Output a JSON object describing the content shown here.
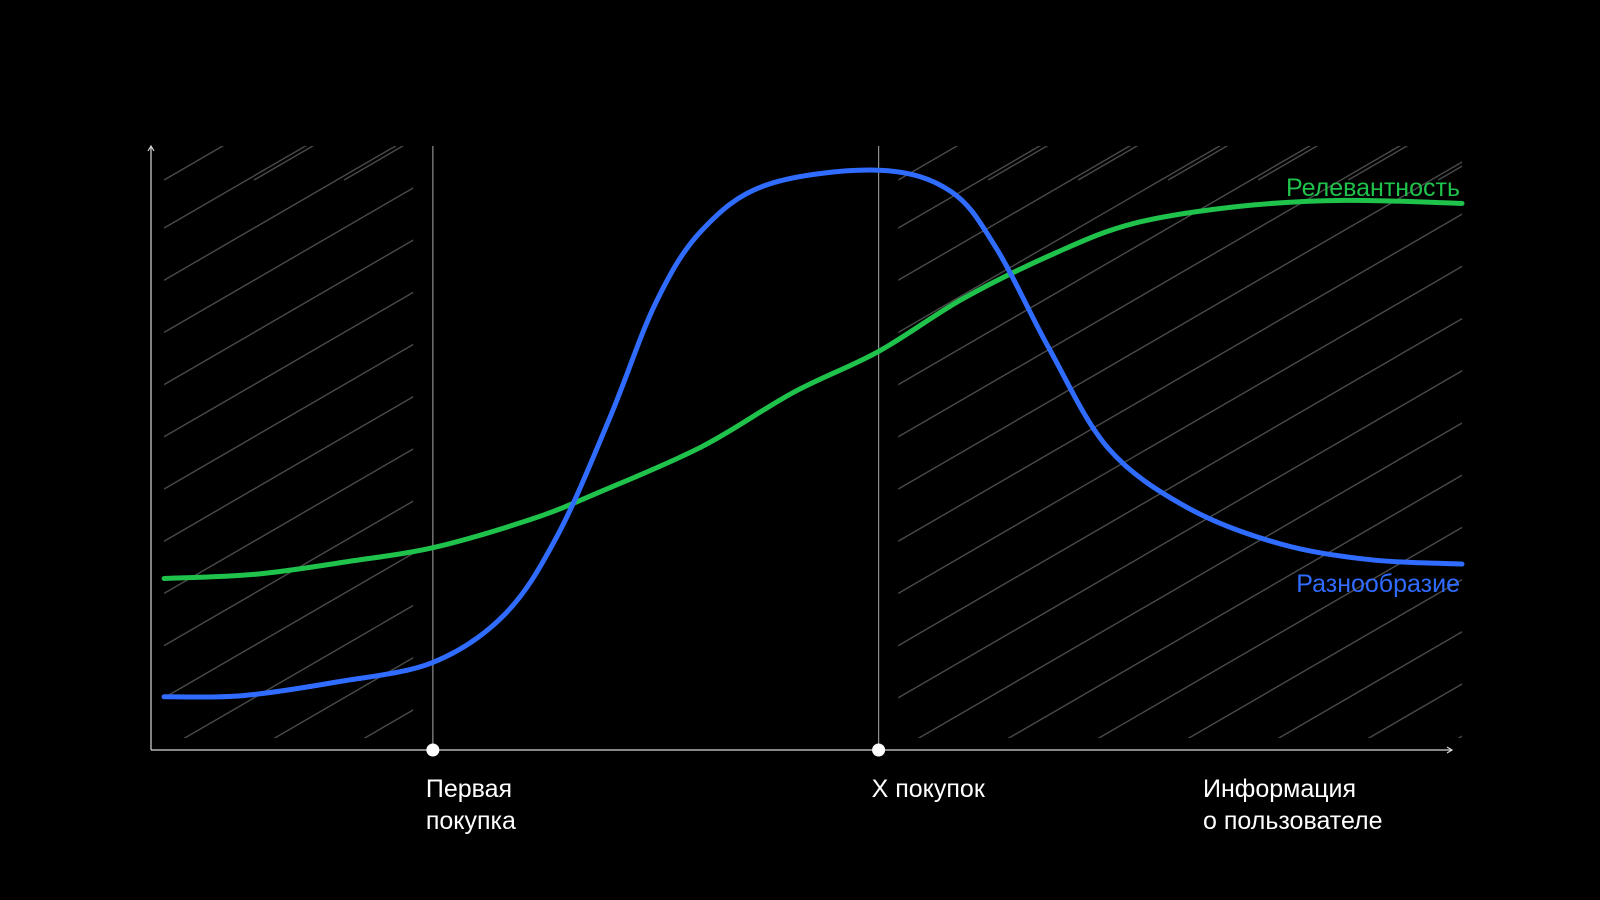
{
  "chart_data": {
    "type": "line",
    "title": "",
    "xlabel": "",
    "ylabel": "",
    "x_range": [
      0,
      10
    ],
    "y_range": [
      0,
      10
    ],
    "grid": false,
    "legend": "inline-right",
    "markers": [
      {
        "x": 2.15,
        "label": [
          "Первая",
          "покупка"
        ]
      },
      {
        "x": 5.55,
        "label": [
          "X покупок"
        ]
      }
    ],
    "x_axis_end_label": [
      "Информация",
      "о пользователе"
    ],
    "hatched_ranges": [
      [
        0.1,
        2.0
      ],
      [
        5.7,
        10.0
      ]
    ],
    "series": [
      {
        "name": "Релевантность",
        "color": "#1fc24a",
        "points": [
          [
            0.1,
            2.84
          ],
          [
            0.8,
            2.91
          ],
          [
            1.5,
            3.12
          ],
          [
            2.15,
            3.35
          ],
          [
            2.9,
            3.82
          ],
          [
            3.4,
            4.25
          ],
          [
            4.2,
            5.02
          ],
          [
            4.9,
            5.92
          ],
          [
            5.55,
            6.6
          ],
          [
            6.2,
            7.48
          ],
          [
            6.9,
            8.23
          ],
          [
            7.5,
            8.72
          ],
          [
            8.3,
            9.0
          ],
          [
            9.1,
            9.1
          ],
          [
            10.0,
            9.05
          ]
        ]
      },
      {
        "name": "Разнообразие",
        "color": "#2f6cff",
        "points": [
          [
            0.1,
            0.88
          ],
          [
            0.7,
            0.9
          ],
          [
            1.4,
            1.12
          ],
          [
            2.15,
            1.45
          ],
          [
            2.7,
            2.25
          ],
          [
            3.1,
            3.55
          ],
          [
            3.5,
            5.5
          ],
          [
            3.85,
            7.4
          ],
          [
            4.2,
            8.6
          ],
          [
            4.7,
            9.36
          ],
          [
            5.55,
            9.6
          ],
          [
            6.1,
            9.25
          ],
          [
            6.45,
            8.3
          ],
          [
            6.85,
            6.65
          ],
          [
            7.3,
            5.0
          ],
          [
            7.9,
            4.02
          ],
          [
            8.6,
            3.42
          ],
          [
            9.3,
            3.15
          ],
          [
            10.0,
            3.08
          ]
        ]
      }
    ]
  }
}
